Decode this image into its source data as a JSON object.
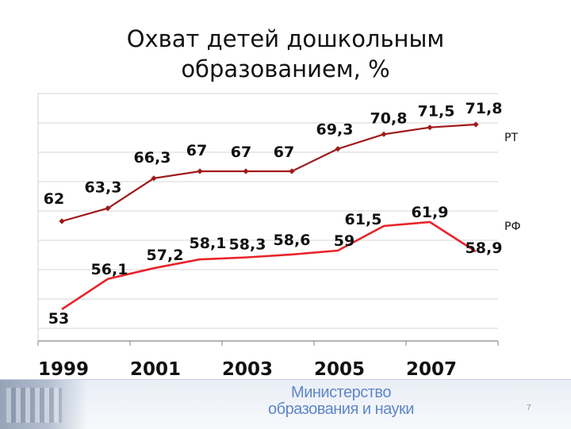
{
  "slide": {
    "title_line1": "Охват детей дошкольным",
    "title_line2": "образованием, %",
    "page_number": "7"
  },
  "footer": {
    "ministry_line1": "Министерство",
    "ministry_line2": "образования и науки"
  },
  "chart_data": {
    "type": "line",
    "title": "Охват детей дошкольным образованием, %",
    "x": [
      1999,
      2000,
      2001,
      2002,
      2003,
      2004,
      2005,
      2006,
      2007,
      2008
    ],
    "x_tick_labels": [
      "1999",
      "2001",
      "2003",
      "2005",
      "2007"
    ],
    "grid": true,
    "series": [
      {
        "name": "РТ",
        "color": "#a01818",
        "marker": "diamond",
        "values": [
          62,
          63.3,
          66.3,
          67,
          67,
          67,
          69.3,
          70.8,
          71.5,
          71.8
        ],
        "labels": [
          "62",
          "63,3",
          "66,3",
          "67",
          "67",
          "67",
          "69,3",
          "70,8",
          "71,5",
          "71,8"
        ]
      },
      {
        "name": "РФ",
        "color": "#e8242b",
        "marker": "none",
        "values": [
          53,
          56.1,
          57.2,
          58.1,
          58.3,
          58.6,
          59,
          61.5,
          61.9,
          58.9
        ],
        "labels": [
          "53",
          "56,1",
          "57,2",
          "58,1",
          "58,3",
          "58,6",
          "59",
          "61,5",
          "61,9",
          "58,9"
        ]
      }
    ]
  }
}
